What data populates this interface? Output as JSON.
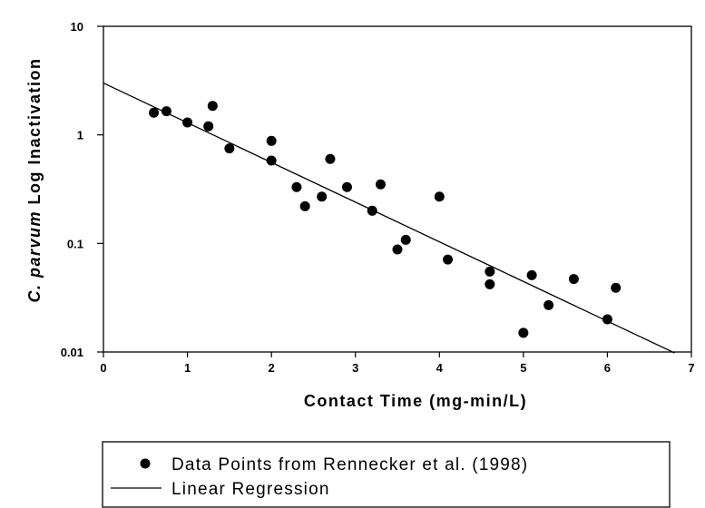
{
  "chart_data": {
    "type": "scatter",
    "xlabel": "Contact Time (mg-min/L)",
    "ylabel_prefix": "C. parvum",
    "ylabel_suffix": " Log Inactivation",
    "xlim": [
      0,
      7
    ],
    "ylim": [
      0.01,
      10
    ],
    "yscale": "log",
    "grid": false,
    "legend_position": "bottom",
    "x_ticks": [
      "0",
      "1",
      "2",
      "3",
      "4",
      "5",
      "6",
      "7"
    ],
    "y_ticks": [
      "0.01",
      "0.1",
      "1",
      "10"
    ],
    "series": [
      {
        "name": "Data Points from Rennecker et al. (1998)",
        "kind": "scatter",
        "points": [
          {
            "x": 0.6,
            "y": 1.6
          },
          {
            "x": 0.75,
            "y": 1.65
          },
          {
            "x": 1.0,
            "y": 1.3
          },
          {
            "x": 1.25,
            "y": 1.2
          },
          {
            "x": 1.3,
            "y": 1.85
          },
          {
            "x": 1.5,
            "y": 0.75
          },
          {
            "x": 2.0,
            "y": 0.88
          },
          {
            "x": 2.0,
            "y": 0.58
          },
          {
            "x": 2.3,
            "y": 0.33
          },
          {
            "x": 2.4,
            "y": 0.22
          },
          {
            "x": 2.6,
            "y": 0.27
          },
          {
            "x": 2.7,
            "y": 0.6
          },
          {
            "x": 2.9,
            "y": 0.33
          },
          {
            "x": 3.2,
            "y": 0.2
          },
          {
            "x": 3.3,
            "y": 0.35
          },
          {
            "x": 3.5,
            "y": 0.088
          },
          {
            "x": 3.6,
            "y": 0.108
          },
          {
            "x": 4.0,
            "y": 0.27
          },
          {
            "x": 4.1,
            "y": 0.071
          },
          {
            "x": 4.6,
            "y": 0.055
          },
          {
            "x": 4.6,
            "y": 0.042
          },
          {
            "x": 5.0,
            "y": 0.015
          },
          {
            "x": 5.1,
            "y": 0.051
          },
          {
            "x": 5.3,
            "y": 0.027
          },
          {
            "x": 5.6,
            "y": 0.047
          },
          {
            "x": 6.0,
            "y": 0.02
          },
          {
            "x": 6.1,
            "y": 0.039
          }
        ]
      },
      {
        "name": "Linear Regression",
        "kind": "line",
        "points": [
          {
            "x": 0,
            "y": 3.0
          },
          {
            "x": 6.8,
            "y": 0.0098
          }
        ]
      }
    ]
  }
}
